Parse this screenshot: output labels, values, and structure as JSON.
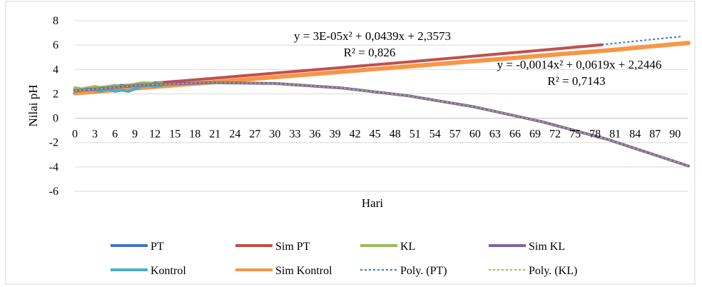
{
  "chart_data": {
    "type": "line",
    "xlabel": "Hari",
    "ylabel": "Nilai pH",
    "xlim": [
      0,
      92
    ],
    "ylim": [
      -6,
      8
    ],
    "y_ticks": [
      8,
      6,
      4,
      2,
      0,
      -2,
      -4,
      -6
    ],
    "x_ticks": [
      0,
      3,
      6,
      9,
      12,
      15,
      18,
      21,
      24,
      27,
      30,
      33,
      36,
      39,
      42,
      45,
      48,
      51,
      54,
      57,
      60,
      63,
      66,
      69,
      72,
      75,
      78,
      81,
      84,
      87,
      90
    ],
    "grid": "horizontal",
    "legend_position": "bottom",
    "series": [
      {
        "name": "PT",
        "color": "#4472C4",
        "width": 4,
        "dash": "",
        "x": [
          0,
          1,
          2,
          3,
          4,
          5,
          6,
          7,
          8,
          9,
          10,
          11,
          12,
          13
        ],
        "y": [
          2.3,
          2.4,
          2.5,
          2.4,
          2.5,
          2.6,
          2.6,
          2.7,
          2.6,
          2.7,
          2.8,
          2.8,
          2.9,
          2.8
        ]
      },
      {
        "name": "Sim PT",
        "color": "#C0504D",
        "width": 4,
        "dash": "",
        "x": [
          0,
          10,
          20,
          30,
          40,
          50,
          60,
          70,
          79
        ],
        "y": [
          2.36,
          2.8,
          3.24,
          3.7,
          4.16,
          4.62,
          5.1,
          5.58,
          6.02
        ]
      },
      {
        "name": "KL",
        "color": "#9BBB59",
        "width": 4,
        "dash": "",
        "x": [
          0,
          1,
          2,
          3,
          4,
          5,
          6,
          7,
          8,
          9,
          10,
          11,
          12,
          13
        ],
        "y": [
          2.5,
          2.4,
          2.5,
          2.6,
          2.5,
          2.6,
          2.7,
          2.6,
          2.7,
          2.8,
          2.9,
          2.9,
          2.8,
          2.9
        ]
      },
      {
        "name": "Sim KL",
        "color": "#8064A2",
        "width": 4,
        "dash": "",
        "x": [
          0,
          10,
          20,
          30,
          40,
          50,
          60,
          70,
          80,
          92
        ],
        "y": [
          2.24,
          2.72,
          2.92,
          2.85,
          2.48,
          1.84,
          0.92,
          -0.28,
          -1.76,
          -3.92
        ]
      },
      {
        "name": "Kontrol",
        "color": "#4BACC6",
        "width": 4,
        "dash": "",
        "x": [
          0,
          1,
          2,
          3,
          4,
          5,
          6,
          7,
          8,
          9,
          10,
          11,
          12,
          13
        ],
        "y": [
          2.2,
          2.3,
          2.4,
          2.3,
          2.2,
          2.4,
          2.2,
          2.3,
          2.2,
          2.4,
          2.6,
          2.7,
          2.6,
          2.7
        ]
      },
      {
        "name": "Sim Kontrol",
        "color": "#F79646",
        "width": 6,
        "dash": "",
        "x": [
          0,
          10,
          20,
          30,
          40,
          50,
          60,
          70,
          80,
          92
        ],
        "y": [
          2.05,
          2.49,
          2.93,
          3.37,
          3.81,
          4.25,
          4.69,
          5.13,
          5.57,
          6.18
        ]
      },
      {
        "name": "Poly. (PT)",
        "color": "#4472C4",
        "width": 2,
        "dash": "3,3",
        "x": [
          79,
          85,
          91
        ],
        "y": [
          6.03,
          6.37,
          6.71
        ]
      },
      {
        "name": "Poly. (KL)",
        "color": "#9BBB59",
        "width": 2,
        "dash": "3,3",
        "x": [
          0,
          10,
          20,
          30,
          40,
          50,
          60,
          70,
          80,
          92
        ],
        "y": [
          2.24,
          2.72,
          2.92,
          2.85,
          2.48,
          1.84,
          0.92,
          -0.28,
          -1.76,
          -3.92
        ]
      }
    ],
    "annotations": [
      {
        "line1": "y = 3E-05x² + 0,0439x + 2,3573",
        "line2": "R² = 0,826"
      },
      {
        "line1": "y = -0,0014x² + 0,0619x + 2,2446",
        "line2": "R² = 0,7143"
      }
    ]
  }
}
